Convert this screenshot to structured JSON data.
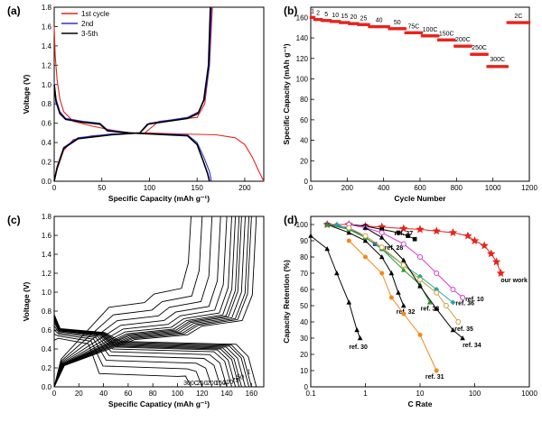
{
  "colors": {
    "red": "#e8231b",
    "blue": "#2f2fe0",
    "black": "#000000",
    "grey": "#888888"
  },
  "chart_data": [
    {
      "panel": "(a)",
      "type": "line",
      "xlabel": "Specific Capacity (mAh g⁻¹)",
      "ylabel": "Voltage (V)",
      "xlim": [
        0,
        220
      ],
      "ylim": [
        0,
        1.8
      ],
      "xticks": [
        0,
        50,
        100,
        150,
        200
      ],
      "yticks": [
        0.0,
        0.2,
        0.4,
        0.6,
        0.8,
        1.0,
        1.2,
        1.4,
        1.6,
        1.8
      ],
      "legend_position": "top-left",
      "series": [
        {
          "name": "1st cycle",
          "color": "#e8231b",
          "discharge": [
            [
              0,
              1.6
            ],
            [
              1,
              1.3
            ],
            [
              3,
              1.05
            ],
            [
              6,
              0.85
            ],
            [
              10,
              0.72
            ],
            [
              20,
              0.62
            ],
            [
              40,
              0.57
            ],
            [
              60,
              0.53
            ],
            [
              80,
              0.5
            ],
            [
              100,
              0.5
            ],
            [
              130,
              0.49
            ],
            [
              170,
              0.48
            ],
            [
              190,
              0.45
            ],
            [
              200,
              0.38
            ],
            [
              208,
              0.25
            ],
            [
              214,
              0.12
            ],
            [
              220,
              0.0
            ]
          ],
          "charge": [
            [
              0,
              0.0
            ],
            [
              3,
              0.12
            ],
            [
              10,
              0.32
            ],
            [
              20,
              0.43
            ],
            [
              40,
              0.47
            ],
            [
              70,
              0.49
            ],
            [
              95,
              0.5
            ],
            [
              110,
              0.62
            ],
            [
              150,
              0.66
            ],
            [
              158,
              0.8
            ],
            [
              163,
              1.2
            ],
            [
              166,
              1.8
            ]
          ]
        },
        {
          "name": "2nd",
          "color": "#2f2fe0",
          "discharge": [
            [
              0,
              1.02
            ],
            [
              2,
              0.85
            ],
            [
              6,
              0.72
            ],
            [
              12,
              0.65
            ],
            [
              30,
              0.62
            ],
            [
              48,
              0.6
            ],
            [
              56,
              0.53
            ],
            [
              80,
              0.5
            ],
            [
              140,
              0.48
            ],
            [
              150,
              0.4
            ],
            [
              157,
              0.25
            ],
            [
              163,
              0.1
            ],
            [
              165,
              0.0
            ]
          ],
          "charge": [
            [
              0,
              0.0
            ],
            [
              3,
              0.15
            ],
            [
              10,
              0.35
            ],
            [
              25,
              0.45
            ],
            [
              60,
              0.49
            ],
            [
              90,
              0.5
            ],
            [
              100,
              0.6
            ],
            [
              140,
              0.66
            ],
            [
              152,
              0.72
            ],
            [
              158,
              0.85
            ],
            [
              163,
              1.2
            ],
            [
              165,
              1.8
            ]
          ]
        },
        {
          "name": "3-5th",
          "color": "#000000",
          "discharge": [
            [
              0,
              1.0
            ],
            [
              2,
              0.82
            ],
            [
              6,
              0.7
            ],
            [
              12,
              0.64
            ],
            [
              30,
              0.61
            ],
            [
              48,
              0.59
            ],
            [
              56,
              0.52
            ],
            [
              80,
              0.5
            ],
            [
              140,
              0.47
            ],
            [
              150,
              0.38
            ],
            [
              156,
              0.22
            ],
            [
              161,
              0.08
            ],
            [
              163,
              0.0
            ]
          ],
          "charge": [
            [
              0,
              0.0
            ],
            [
              3,
              0.14
            ],
            [
              10,
              0.34
            ],
            [
              25,
              0.44
            ],
            [
              60,
              0.48
            ],
            [
              90,
              0.5
            ],
            [
              98,
              0.59
            ],
            [
              140,
              0.65
            ],
            [
              151,
              0.7
            ],
            [
              157,
              0.84
            ],
            [
              162,
              1.2
            ],
            [
              164,
              1.8
            ]
          ]
        }
      ]
    },
    {
      "panel": "(b)",
      "type": "scatter",
      "xlabel": "Cycle Number",
      "ylabel": "Specific Capacity (mAh g⁻¹)",
      "xlim": [
        0,
        1200
      ],
      "ylim": [
        0,
        170
      ],
      "xticks": [
        0,
        200,
        400,
        600,
        800,
        1000,
        1200
      ],
      "yticks": [
        0,
        20,
        40,
        60,
        80,
        100,
        120,
        140,
        160
      ],
      "segments": [
        {
          "label": "1",
          "start": 0,
          "end": 20,
          "capacity": 160
        },
        {
          "label": "2",
          "start": 20,
          "end": 60,
          "capacity": 158
        },
        {
          "label": "5",
          "start": 60,
          "end": 110,
          "capacity": 157
        },
        {
          "label": "10",
          "start": 110,
          "end": 160,
          "capacity": 156
        },
        {
          "label": "15",
          "start": 160,
          "end": 210,
          "capacity": 155
        },
        {
          "label": "20",
          "start": 210,
          "end": 260,
          "capacity": 154
        },
        {
          "label": "25",
          "start": 260,
          "end": 320,
          "capacity": 153
        },
        {
          "label": "40",
          "start": 320,
          "end": 430,
          "capacity": 151
        },
        {
          "label": "50",
          "start": 430,
          "end": 520,
          "capacity": 149
        },
        {
          "label": "75C",
          "start": 520,
          "end": 610,
          "capacity": 145
        },
        {
          "label": "100C",
          "start": 610,
          "end": 700,
          "capacity": 142
        },
        {
          "label": "150C",
          "start": 700,
          "end": 790,
          "capacity": 138
        },
        {
          "label": "200C",
          "start": 790,
          "end": 880,
          "capacity": 132
        },
        {
          "label": "250C",
          "start": 880,
          "end": 970,
          "capacity": 124
        },
        {
          "label": "300C",
          "start": 970,
          "end": 1080,
          "capacity": 112
        },
        {
          "label": "2C",
          "start": 1080,
          "end": 1200,
          "capacity": 155
        }
      ]
    },
    {
      "panel": "(c)",
      "type": "line",
      "xlabel": "Specific Capaticy (mAh g⁻¹)",
      "ylabel": "Voltage (V)",
      "xlim": [
        0,
        170
      ],
      "ylim": [
        0,
        1.8
      ],
      "xticks": [
        0,
        20,
        40,
        60,
        80,
        100,
        120,
        140,
        160
      ],
      "yticks": [
        0.0,
        0.2,
        0.4,
        0.6,
        0.8,
        1.0,
        1.2,
        1.4,
        1.6,
        1.8
      ],
      "rate_labels": [
        "300C",
        "250",
        "200",
        "150",
        "100",
        "75",
        "50",
        "1"
      ],
      "capacities": [
        164,
        160,
        158,
        155,
        152,
        150,
        147,
        144,
        140,
        135,
        128,
        120,
        111
      ],
      "polarizations": [
        0.02,
        0.03,
        0.04,
        0.05,
        0.06,
        0.07,
        0.08,
        0.1,
        0.13,
        0.17,
        0.22,
        0.28,
        0.36
      ]
    },
    {
      "panel": "(d)",
      "type": "line",
      "xlabel": "C Rate",
      "ylabel": "Capacity Retention (%)",
      "xscale": "log",
      "xlim": [
        0.1,
        1000
      ],
      "ylim": [
        0,
        105
      ],
      "xticks": [
        0.1,
        1,
        10,
        100,
        1000
      ],
      "yticks": [
        0,
        10,
        20,
        30,
        40,
        50,
        60,
        70,
        80,
        90,
        100
      ],
      "series": [
        {
          "name": "our work",
          "color": "#e8231b",
          "marker": "star",
          "points": [
            [
              0.2,
              100
            ],
            [
              0.5,
              100
            ],
            [
              1,
              99
            ],
            [
              2,
              98.5
            ],
            [
              5,
              97.5
            ],
            [
              10,
              97
            ],
            [
              20,
              96
            ],
            [
              40,
              95
            ],
            [
              75,
              93
            ],
            [
              100,
              90
            ],
            [
              150,
              87
            ],
            [
              200,
              82
            ],
            [
              250,
              77
            ],
            [
              300,
              70
            ]
          ]
        },
        {
          "name": "ref. 37",
          "color": "#000000",
          "marker": "square",
          "points": [
            [
              0.5,
              100
            ],
            [
              1,
              99
            ],
            [
              2,
              97
            ],
            [
              4,
              95
            ],
            [
              6,
              93
            ],
            [
              8,
              91
            ]
          ]
        },
        {
          "name": "ref. 28",
          "color": "#2f2fe0",
          "marker": "square",
          "points": [
            [
              0.2,
              100
            ],
            [
              0.5,
              98
            ],
            [
              1,
              92
            ],
            [
              1.5,
              88
            ],
            [
              2,
              85
            ]
          ]
        },
        {
          "name": "ref. 10",
          "color": "#d63ad6",
          "marker": "circle-open",
          "points": [
            [
              0.5,
              100
            ],
            [
              1,
              98
            ],
            [
              2,
              95
            ],
            [
              5,
              88
            ],
            [
              10,
              80
            ],
            [
              20,
              70
            ],
            [
              40,
              60
            ],
            [
              60,
              55
            ]
          ]
        },
        {
          "name": "ref. 36",
          "color": "#2aa5a5",
          "marker": "diamond",
          "points": [
            [
              0.3,
              100
            ],
            [
              0.5,
              97
            ],
            [
              1,
              92
            ],
            [
              2,
              85
            ],
            [
              5,
              75
            ],
            [
              10,
              68
            ],
            [
              20,
              60
            ],
            [
              40,
              52
            ]
          ]
        },
        {
          "name": "ref. 32",
          "color": "#000000",
          "marker": "triangle",
          "points": [
            [
              0.2,
              100
            ],
            [
              0.5,
              95
            ],
            [
              1,
              90
            ],
            [
              2,
              80
            ],
            [
              3,
              70
            ],
            [
              4,
              58
            ],
            [
              5,
              50
            ]
          ]
        },
        {
          "name": "ref. 33",
          "color": "#2a9a2a",
          "marker": "triangle",
          "points": [
            [
              0.2,
              100
            ],
            [
              0.5,
              97
            ],
            [
              1,
              92
            ],
            [
              2,
              85
            ],
            [
              5,
              72
            ],
            [
              10,
              63
            ],
            [
              15,
              52
            ]
          ]
        },
        {
          "name": "ref. 35",
          "color": "#c8a038",
          "marker": "circle-open",
          "points": [
            [
              0.5,
              98
            ],
            [
              1,
              93
            ],
            [
              2,
              86
            ],
            [
              5,
              75
            ],
            [
              10,
              66
            ],
            [
              20,
              58
            ],
            [
              30,
              50
            ],
            [
              50,
              40
            ]
          ]
        },
        {
          "name": "ref. 34",
          "color": "#000000",
          "marker": "triangle",
          "points": [
            [
              1,
              98
            ],
            [
              2,
              92
            ],
            [
              5,
              78
            ],
            [
              10,
              62
            ],
            [
              20,
              48
            ],
            [
              40,
              35
            ],
            [
              60,
              30
            ]
          ]
        },
        {
          "name": "ref. 31",
          "color": "#f08a1a",
          "marker": "circle",
          "points": [
            [
              0.5,
              90
            ],
            [
              1,
              80
            ],
            [
              2,
              70
            ],
            [
              3,
              55
            ],
            [
              5,
              45
            ],
            [
              10,
              32
            ],
            [
              20,
              10
            ]
          ]
        },
        {
          "name": "ref. 30",
          "color": "#000000",
          "marker": "triangle",
          "points": [
            [
              0.1,
              93
            ],
            [
              0.2,
              85
            ],
            [
              0.3,
              70
            ],
            [
              0.5,
              52
            ],
            [
              0.7,
              35
            ],
            [
              0.8,
              30
            ]
          ]
        }
      ]
    }
  ],
  "panels": {
    "a": {
      "label": "(a)"
    },
    "b": {
      "label": "(b)"
    },
    "c": {
      "label": "(c)"
    },
    "d": {
      "label": "(d)"
    }
  }
}
